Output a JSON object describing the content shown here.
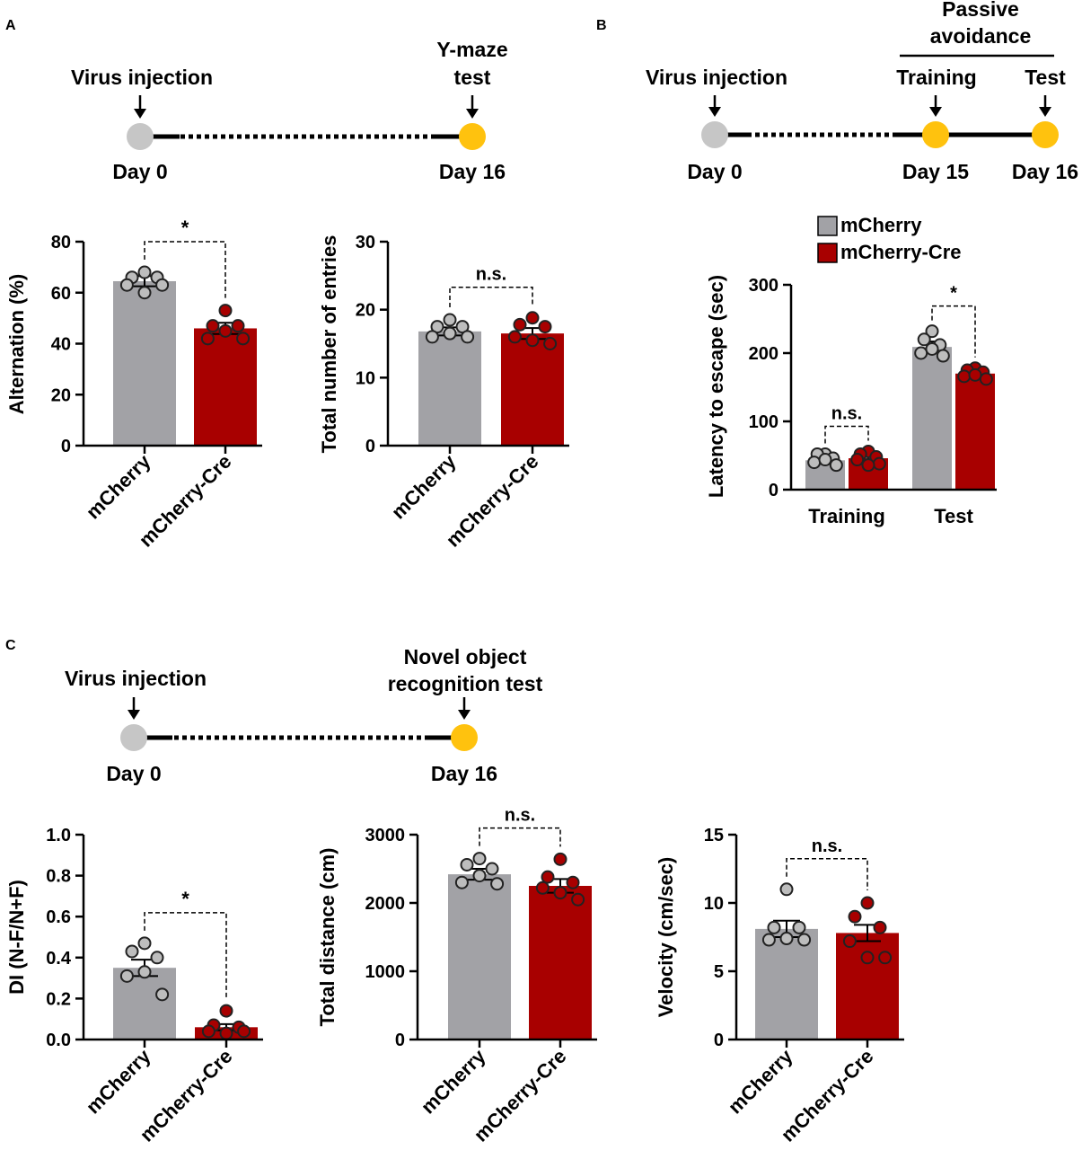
{
  "colors": {
    "gray_bar": "#a2a2a6",
    "red_bar": "#a80000",
    "gray_dot": "#bdbdbd",
    "red_dot": "#a80000",
    "timeline_gray": "#c6c6c6",
    "timeline_yellow": "#ffc20e"
  },
  "panels": {
    "a": {
      "letter": "A",
      "timeline": {
        "start_label": "Virus injection",
        "start_day": "Day 0",
        "end_label_line1": "Y-maze",
        "end_label_line2": "test",
        "end_day": "Day 16"
      }
    },
    "b": {
      "letter": "B",
      "timeline": {
        "start_label": "Virus injection",
        "start_day": "Day 0",
        "group_label_line1": "Passive",
        "group_label_line2": "avoidance",
        "mid_label": "Training",
        "mid_day": "Day 15",
        "end_label": "Test",
        "end_day": "Day 16"
      }
    },
    "c": {
      "letter": "C",
      "timeline": {
        "start_label": "Virus injection",
        "start_day": "Day 0",
        "end_label_line1": "Novel object",
        "end_label_line2": "recognition test",
        "end_day": "Day 16"
      }
    }
  },
  "chart_data": [
    {
      "id": "a1",
      "type": "bar",
      "ylabel": "Alternation (%)",
      "ylim": [
        0,
        80
      ],
      "yticks": [
        0,
        20,
        40,
        60,
        80
      ],
      "categories": [
        "mCherry",
        "mCherry-Cre"
      ],
      "values": [
        64.5,
        46
      ],
      "sem": [
        2,
        2.2
      ],
      "points": [
        [
          68,
          66,
          66,
          63,
          63,
          60
        ],
        [
          53,
          47,
          47,
          42,
          42,
          45
        ]
      ],
      "significance": "*"
    },
    {
      "id": "a2",
      "type": "bar",
      "ylabel": "Total number of entries",
      "ylim": [
        0,
        30
      ],
      "yticks": [
        0,
        10,
        20,
        30
      ],
      "categories": [
        "mCherry",
        "mCherry-Cre"
      ],
      "values": [
        16.8,
        16.5
      ],
      "sem": [
        0.6,
        0.8
      ],
      "points": [
        [
          18.5,
          17.5,
          17.5,
          16,
          16,
          16.5
        ],
        [
          18.8,
          17.8,
          17.5,
          16,
          15,
          15.5
        ]
      ],
      "significance": "n.s."
    },
    {
      "id": "b1",
      "type": "bar",
      "ylabel": "Latency to escape (sec)",
      "ylim": [
        0,
        300
      ],
      "yticks": [
        0,
        100,
        200,
        300
      ],
      "categories": [
        "Training",
        "Test"
      ],
      "series": [
        {
          "name": "mCherry",
          "values": [
            43,
            209
          ],
          "sem": [
            5,
            8
          ],
          "points": [
            [
              52,
              52,
              46,
              40,
              36,
              44
            ],
            [
              232,
              220,
              212,
              200,
              196,
              206
            ]
          ]
        },
        {
          "name": "mCherry-Cre",
          "values": [
            46,
            170
          ],
          "sem": [
            5,
            4
          ],
          "points": [
            [
              56,
              52,
              48,
              44,
              38,
              36
            ],
            [
              178,
              175,
              172,
              166,
              162,
              168
            ]
          ]
        }
      ],
      "legend": [
        "mCherry",
        "mCherry-Cre"
      ],
      "significance": [
        "n.s.",
        "*"
      ]
    },
    {
      "id": "c1",
      "type": "bar",
      "ylabel": "DI (N-F/N+F)",
      "ylim": [
        0,
        1.0
      ],
      "yticks": [
        "0.0",
        "0.2",
        "0.4",
        "0.6",
        "0.8",
        "1.0"
      ],
      "categories": [
        "mCherry",
        "mCherry-Cre"
      ],
      "values": [
        0.35,
        0.06
      ],
      "sem": [
        0.04,
        0.015
      ],
      "points": [
        [
          0.47,
          0.43,
          0.4,
          0.31,
          0.22,
          0.33
        ],
        [
          0.14,
          0.07,
          0.06,
          0.04,
          0.04,
          0.03
        ]
      ],
      "significance": "*"
    },
    {
      "id": "c2",
      "type": "bar",
      "ylabel": "Total distance (cm)",
      "ylim": [
        0,
        3000
      ],
      "yticks": [
        0,
        1000,
        2000,
        3000
      ],
      "categories": [
        "mCherry",
        "mCherry-Cre"
      ],
      "values": [
        2420,
        2250
      ],
      "sem": [
        80,
        100
      ],
      "points": [
        [
          2650,
          2560,
          2500,
          2300,
          2280,
          2400
        ],
        [
          2640,
          2380,
          2300,
          2220,
          2050,
          2150
        ]
      ],
      "significance": "n.s."
    },
    {
      "id": "c3",
      "type": "bar",
      "ylabel": "Velocity (cm/sec)",
      "ylim": [
        0,
        15
      ],
      "yticks": [
        0,
        5,
        10,
        15
      ],
      "categories": [
        "mCherry",
        "mCherry-Cre"
      ],
      "values": [
        8.1,
        7.8
      ],
      "sem": [
        0.6,
        0.6
      ],
      "points": [
        [
          11,
          8.2,
          8.2,
          7.3,
          7.3,
          7.4
        ],
        [
          10,
          9,
          8.2,
          7.2,
          6,
          6
        ]
      ],
      "significance": "n.s."
    }
  ]
}
